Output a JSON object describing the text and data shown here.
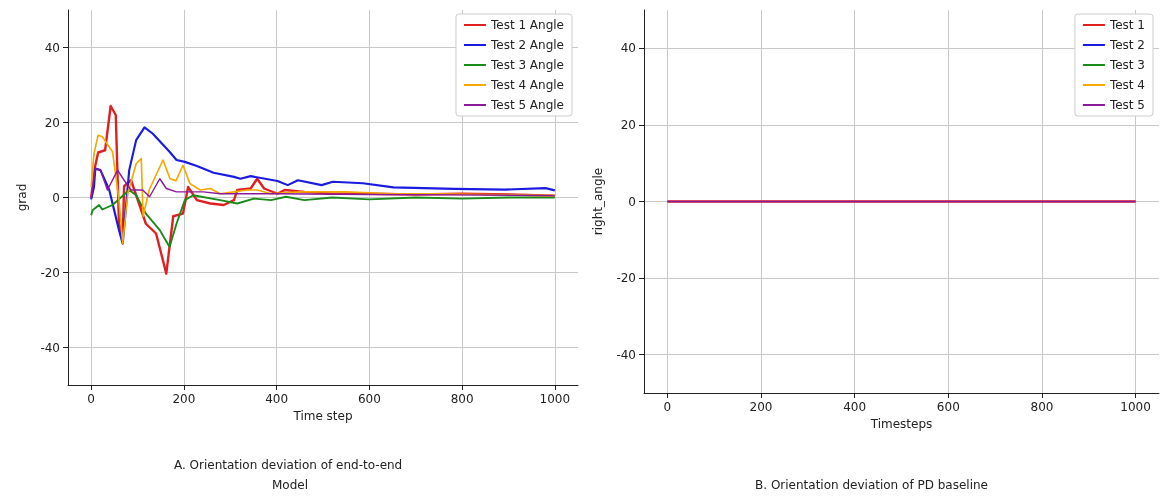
{
  "chart_data": [
    {
      "type": "line",
      "title": "A. Orientation deviation of end-to-end Model",
      "xlabel": "Time step",
      "ylabel": "grad",
      "xlim": [
        -50,
        1050
      ],
      "ylim": [
        -50,
        50
      ],
      "xticks": [
        0,
        200,
        400,
        600,
        800,
        1000
      ],
      "yticks": [
        -40,
        -20,
        0,
        20,
        40
      ],
      "grid": true,
      "legend": "top right",
      "series": [
        {
          "name": "Test 1 Angle",
          "color": "#e02020",
          "x": [
            0,
            8,
            15,
            30,
            42,
            53,
            60,
            68,
            71,
            86,
            118,
            140,
            162,
            177,
            198,
            209,
            228,
            257,
            286,
            308,
            315,
            344,
            358,
            373,
            402,
            417,
            460,
            520,
            600,
            700,
            800,
            900,
            1000
          ],
          "values": [
            0,
            8,
            12,
            12.6,
            24.4,
            22,
            -7,
            -10.5,
            3,
            4.6,
            -7,
            -9.6,
            -20.3,
            -5,
            -4.3,
            2.8,
            -0.7,
            -1.6,
            -2,
            -0.7,
            2,
            2.4,
            5,
            2.4,
            1,
            2,
            1.5,
            1,
            1,
            0.8,
            1,
            0.8,
            0.5
          ]
        },
        {
          "name": "Test 2 Angle",
          "color": "#1a1ae0",
          "x": [
            0,
            6,
            9,
            20,
            39,
            60,
            68,
            82,
            97,
            115,
            133,
            169,
            184,
            202,
            228,
            264,
            308,
            322,
            344,
            402,
            424,
            446,
            497,
            521,
            586,
            652,
            783,
            893,
            980,
            1000
          ],
          "values": [
            -0.5,
            2.8,
            7.7,
            7.3,
            2,
            -8.7,
            -12.3,
            7.3,
            15.3,
            18.7,
            17,
            12.2,
            10,
            9.5,
            8.4,
            6.6,
            5.5,
            5,
            5.7,
            4.4,
            3.3,
            4.6,
            3.3,
            4.2,
            3.8,
            2.7,
            2.3,
            2.1,
            2.5,
            1.9
          ]
        },
        {
          "name": "Test 3 Angle",
          "color": "#1a8a1a",
          "x": [
            0,
            3,
            17,
            24,
            46,
            82,
            97,
            118,
            148,
            169,
            184,
            202,
            220,
            278,
            315,
            351,
            388,
            420,
            460,
            520,
            600,
            700,
            800,
            900,
            1000
          ],
          "values": [
            -4.7,
            -3.4,
            -2,
            -3.2,
            -2,
            2,
            0.6,
            -4.3,
            -8.7,
            -13.2,
            -7,
            -0.7,
            0.6,
            -0.7,
            -1.6,
            -0.3,
            -0.7,
            0.2,
            -0.7,
            0,
            -0.5,
            0,
            -0.3,
            0,
            0
          ]
        },
        {
          "name": "Test 4 Angle",
          "color": "#f5a800",
          "x": [
            0,
            6,
            15,
            24,
            46,
            60,
            68,
            79,
            97,
            108,
            112,
            125,
            140,
            155,
            170,
            183,
            198,
            213,
            235,
            257,
            278,
            308,
            337,
            358,
            388,
            450,
            550,
            650,
            750,
            850,
            1000
          ],
          "values": [
            2.8,
            11.7,
            16.6,
            16.2,
            12.2,
            -0.7,
            -12.3,
            1,
            9,
            10.4,
            -5,
            2,
            6,
            10,
            5,
            4.5,
            8.6,
            3.7,
            2,
            2.4,
            1,
            1.5,
            2,
            2,
            1,
            1.5,
            1.5,
            1,
            1,
            0.8,
            0.5
          ]
        },
        {
          "name": "Test 5 Angle",
          "color": "#8a1a9a",
          "x": [
            0,
            9,
            20,
            35,
            57,
            71,
            86,
            111,
            126,
            148,
            162,
            184,
            242,
            278,
            400,
            600,
            800,
            1000
          ],
          "values": [
            -0.3,
            7.7,
            7.3,
            2,
            7.3,
            4.6,
            2,
            2,
            0.2,
            5,
            2.4,
            1.5,
            1.5,
            1,
            1,
            0.8,
            0.7,
            0.5
          ]
        }
      ]
    },
    {
      "type": "line",
      "title": "B. Orientation deviation of PD baseline",
      "xlabel": "Timesteps",
      "ylabel": "right_angle",
      "xlim": [
        -50,
        1050
      ],
      "ylim": [
        -50,
        50
      ],
      "xticks": [
        0,
        200,
        400,
        600,
        800,
        1000
      ],
      "yticks": [
        -40,
        -20,
        0,
        20,
        40
      ],
      "grid": true,
      "legend": "top right",
      "series": [
        {
          "name": "Test 1",
          "color": "#e02020",
          "x": [
            0,
            1000
          ],
          "values": [
            0,
            0
          ]
        },
        {
          "name": "Test 2",
          "color": "#1a1ae0"
        },
        {
          "name": "Test 3",
          "color": "#1a8a1a"
        },
        {
          "name": "Test 4",
          "color": "#f5a800"
        },
        {
          "name": "Test 5",
          "color": "#8a1a9a",
          "x": [
            0,
            1000
          ],
          "values": [
            0,
            0
          ]
        }
      ]
    }
  ]
}
